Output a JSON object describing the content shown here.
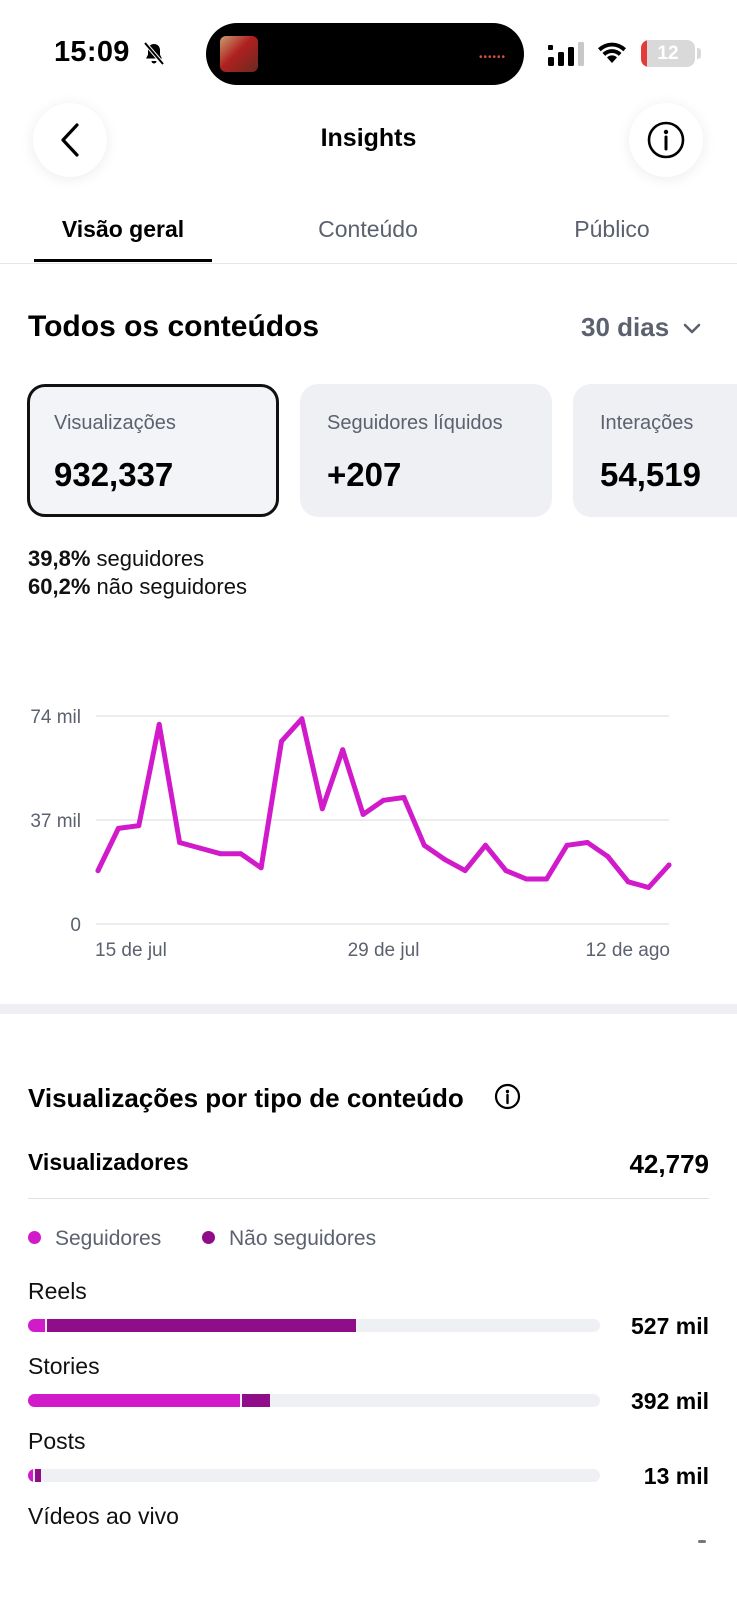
{
  "status_bar": {
    "time": "15:09",
    "battery": "12",
    "battery_level": 0.12
  },
  "header": {
    "title": "Insights"
  },
  "tabs": [
    {
      "label": "Visão geral",
      "active": true
    },
    {
      "label": "Conteúdo",
      "active": false
    },
    {
      "label": "Público",
      "active": false
    }
  ],
  "overview": {
    "title": "Todos os conteúdos",
    "period": "30 dias",
    "cards": [
      {
        "label": "Visualizações",
        "value": "932,337",
        "selected": true
      },
      {
        "label": "Seguidores líquidos",
        "value": "+207",
        "selected": false
      },
      {
        "label": "Interações",
        "value": "54,519",
        "selected": false
      }
    ],
    "split": [
      {
        "pct": "39,8%",
        "label": "seguidores"
      },
      {
        "pct": "60,2%",
        "label": "não seguidores"
      }
    ]
  },
  "chart_data": {
    "type": "line",
    "x_labels": [
      "15 de jul",
      "29 de jul",
      "12 de ago"
    ],
    "y_ticks": [
      "0",
      "37 mil",
      "74 mil"
    ],
    "ylim": [
      0,
      74
    ],
    "y_unit": "mil",
    "grid": true,
    "series": [
      {
        "color": "#d11bcb",
        "values": [
          19,
          34,
          35,
          71,
          29,
          27,
          25,
          25,
          20,
          65,
          73,
          41,
          62,
          39,
          44,
          45,
          28,
          23,
          19,
          28,
          19,
          16,
          16,
          28,
          29,
          24,
          15,
          13,
          21
        ]
      }
    ]
  },
  "by_type": {
    "title": "Visualizações por tipo de conteúdo",
    "viewers_label": "Visualizadores",
    "viewers_value": "42,779",
    "legend": [
      {
        "label": "Seguidores",
        "color": "#d11bcb"
      },
      {
        "label": "Não seguidores",
        "color": "#8f0d88"
      }
    ],
    "rows": [
      {
        "label": "Reels",
        "value": "527 mil",
        "followers_share": 0.03,
        "non_followers_share": 0.54
      },
      {
        "label": "Stories",
        "value": "392 mil",
        "followers_share": 0.37,
        "non_followers_share": 0.05
      },
      {
        "label": "Posts",
        "value": "13 mil",
        "followers_share": 0.005,
        "non_followers_share": 0.01
      },
      {
        "label": "Vídeos ao vivo",
        "value": "",
        "followers_share": 0,
        "non_followers_share": 0
      }
    ]
  }
}
